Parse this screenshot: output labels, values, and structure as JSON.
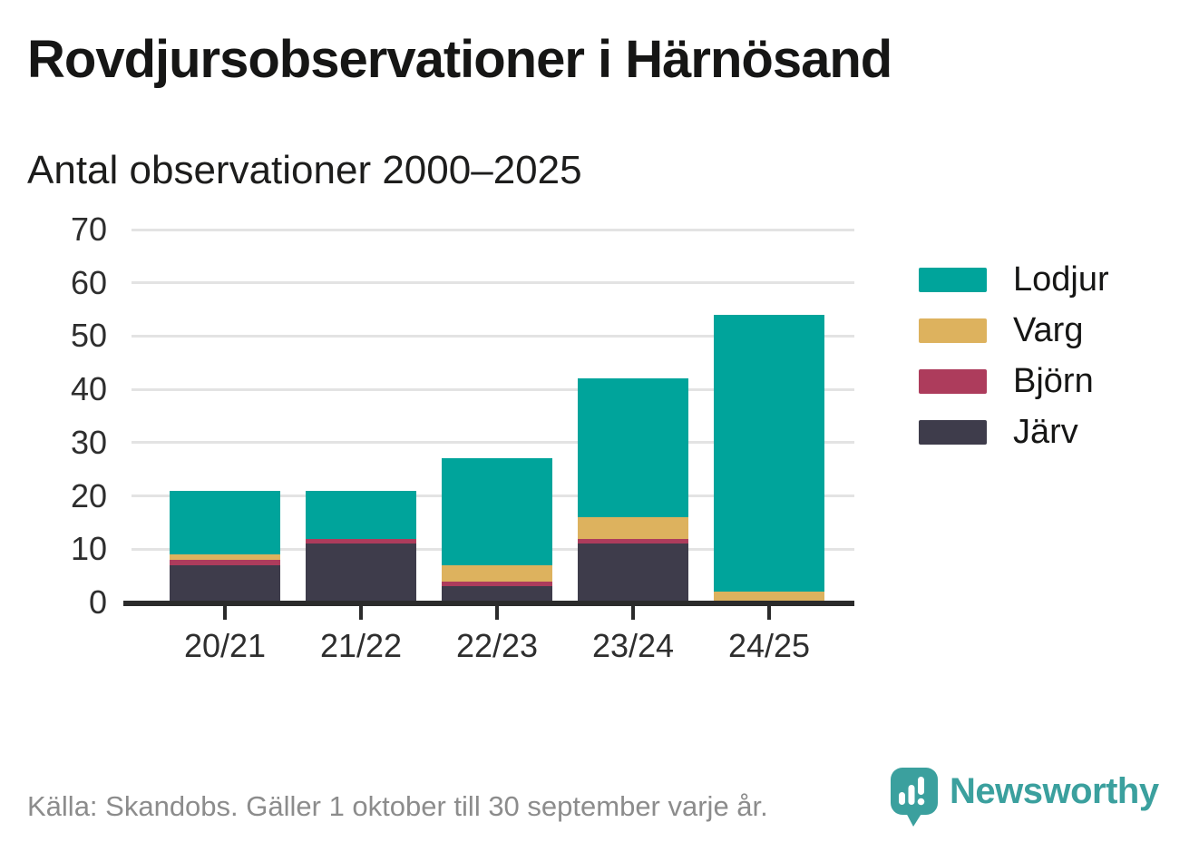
{
  "header": {
    "title": "Rovdjursobservationer i Härnösand",
    "subtitle": "Antal observationer 2000–2025"
  },
  "chart_data": {
    "type": "bar",
    "stacked": true,
    "title": "Rovdjursobservationer i Härnösand",
    "subtitle": "Antal observationer 2000–2025",
    "categories": [
      "20/21",
      "21/22",
      "22/23",
      "23/24",
      "24/25"
    ],
    "series": [
      {
        "name": "Järv",
        "key": "jarv",
        "color": "#3e3c4b",
        "values": [
          7,
          11,
          3,
          11,
          0
        ]
      },
      {
        "name": "Björn",
        "key": "bjorn",
        "color": "#ad3c5c",
        "values": [
          1,
          1,
          1,
          1,
          0
        ]
      },
      {
        "name": "Varg",
        "key": "varg",
        "color": "#ddb25e",
        "values": [
          1,
          0,
          3,
          4,
          2
        ]
      },
      {
        "name": "Lodjur",
        "key": "lodjur",
        "color": "#00a49b",
        "values": [
          12,
          9,
          20,
          26,
          52
        ]
      }
    ],
    "totals": [
      21,
      21,
      27,
      42,
      54
    ],
    "xlabel": "",
    "ylabel": "",
    "ylim": [
      0,
      70
    ],
    "yticks": [
      0,
      10,
      20,
      30,
      40,
      50,
      60,
      70
    ],
    "grid": "horizontal",
    "legend_position": "right",
    "legend_order": [
      "Lodjur",
      "Varg",
      "Björn",
      "Järv"
    ]
  },
  "footer": {
    "source": "Källa: Skandobs. Gäller 1 oktober till 30 september varje år.",
    "brand": "Newsworthy"
  },
  "colors": {
    "lodjur": "#00a49b",
    "varg": "#ddb25e",
    "bjorn": "#ad3c5c",
    "jarv": "#3e3c4b",
    "brand_teal": "#3ba09e",
    "axis": "#2b2b2b",
    "grid": "#e3e3e3",
    "text": "#161615",
    "muted": "#8c8c8c"
  }
}
